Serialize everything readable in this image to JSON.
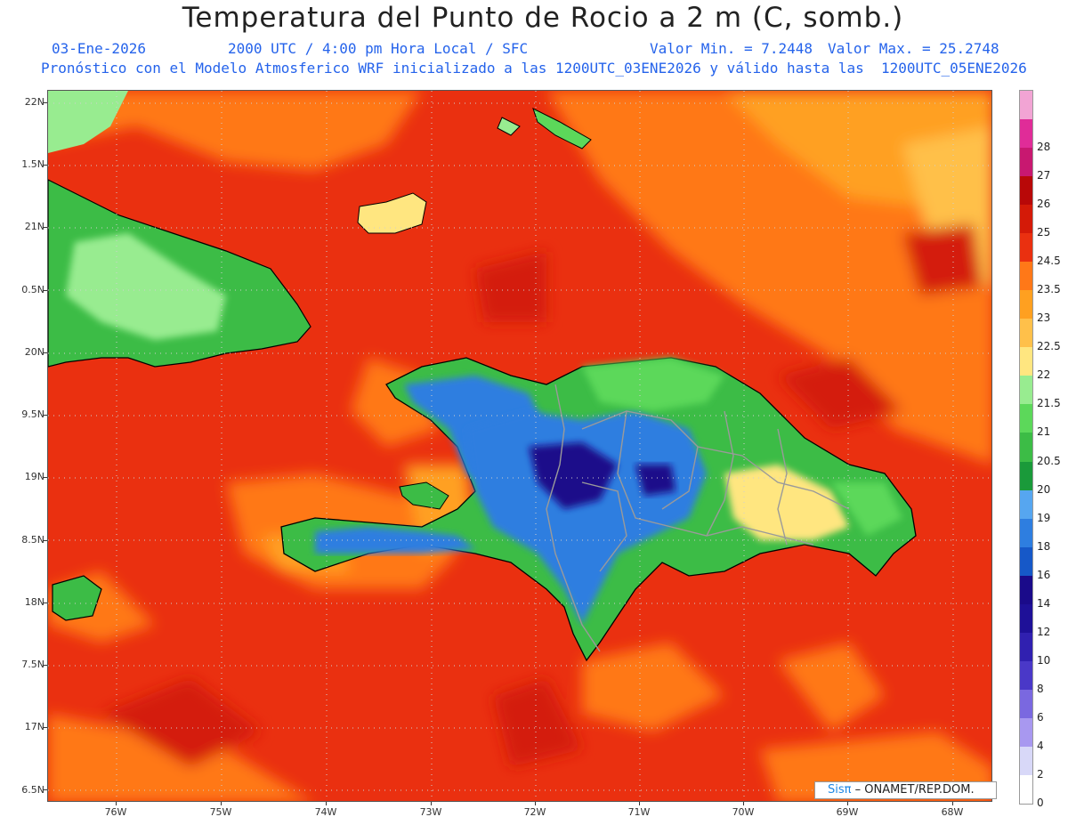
{
  "header": {
    "title": "Temperatura del Punto de Rocio a 2 m (C, somb.)",
    "date": "03-Ene-2026",
    "time": "2000 UTC / 4:00 pm Hora Local / SFC",
    "min": "Valor Min. = 7.2448",
    "max": "Valor Max. = 25.2748",
    "model": "Pronóstico con el Modelo Atmosferico WRF inicializado a las 1200UTC_03ENE2026 y válido hasta las  1200UTC_05ENE2026"
  },
  "map": {
    "lat_labels": [
      "22N",
      "1.5N",
      "21N",
      "0.5N",
      "20N",
      "9.5N",
      "19N",
      "8.5N",
      "18N",
      "7.5N",
      "17N",
      "6.5N"
    ],
    "lon_labels": [
      "76W",
      "75W",
      "74W",
      "73W",
      "72W",
      "71W",
      "70W",
      "69W",
      "68W"
    ],
    "lat_range": [
      16.4,
      22.1
    ],
    "lon_range": [
      -76.6,
      -67.6
    ]
  },
  "colorbar": {
    "levels": [
      "0",
      "2",
      "4",
      "6",
      "8",
      "10",
      "12",
      "14",
      "16",
      "18",
      "19",
      "20",
      "20.5",
      "21",
      "21.5",
      "22",
      "22.5",
      "23",
      "23.5",
      "24.5",
      "25",
      "26",
      "27",
      "28"
    ],
    "colors": [
      "#ffffff",
      "#d8d8f8",
      "#a898f0",
      "#7a68e0",
      "#4a38c8",
      "#3020b0",
      "#1e1098",
      "#1a0a8a",
      "#1658c8",
      "#2e7ee0",
      "#56a6f0",
      "#1a9a3a",
      "#3cbc46",
      "#5cd85a",
      "#98ec90",
      "#ffe680",
      "#ffc04a",
      "#ffa020",
      "#ff7818",
      "#ea3010",
      "#d41a08",
      "#b80808",
      "#c81870",
      "#e02c98",
      "#f2a4d4"
    ]
  },
  "credit": {
    "brand": "Sisπ",
    "text": " – ONAMET/REP.DOM."
  }
}
